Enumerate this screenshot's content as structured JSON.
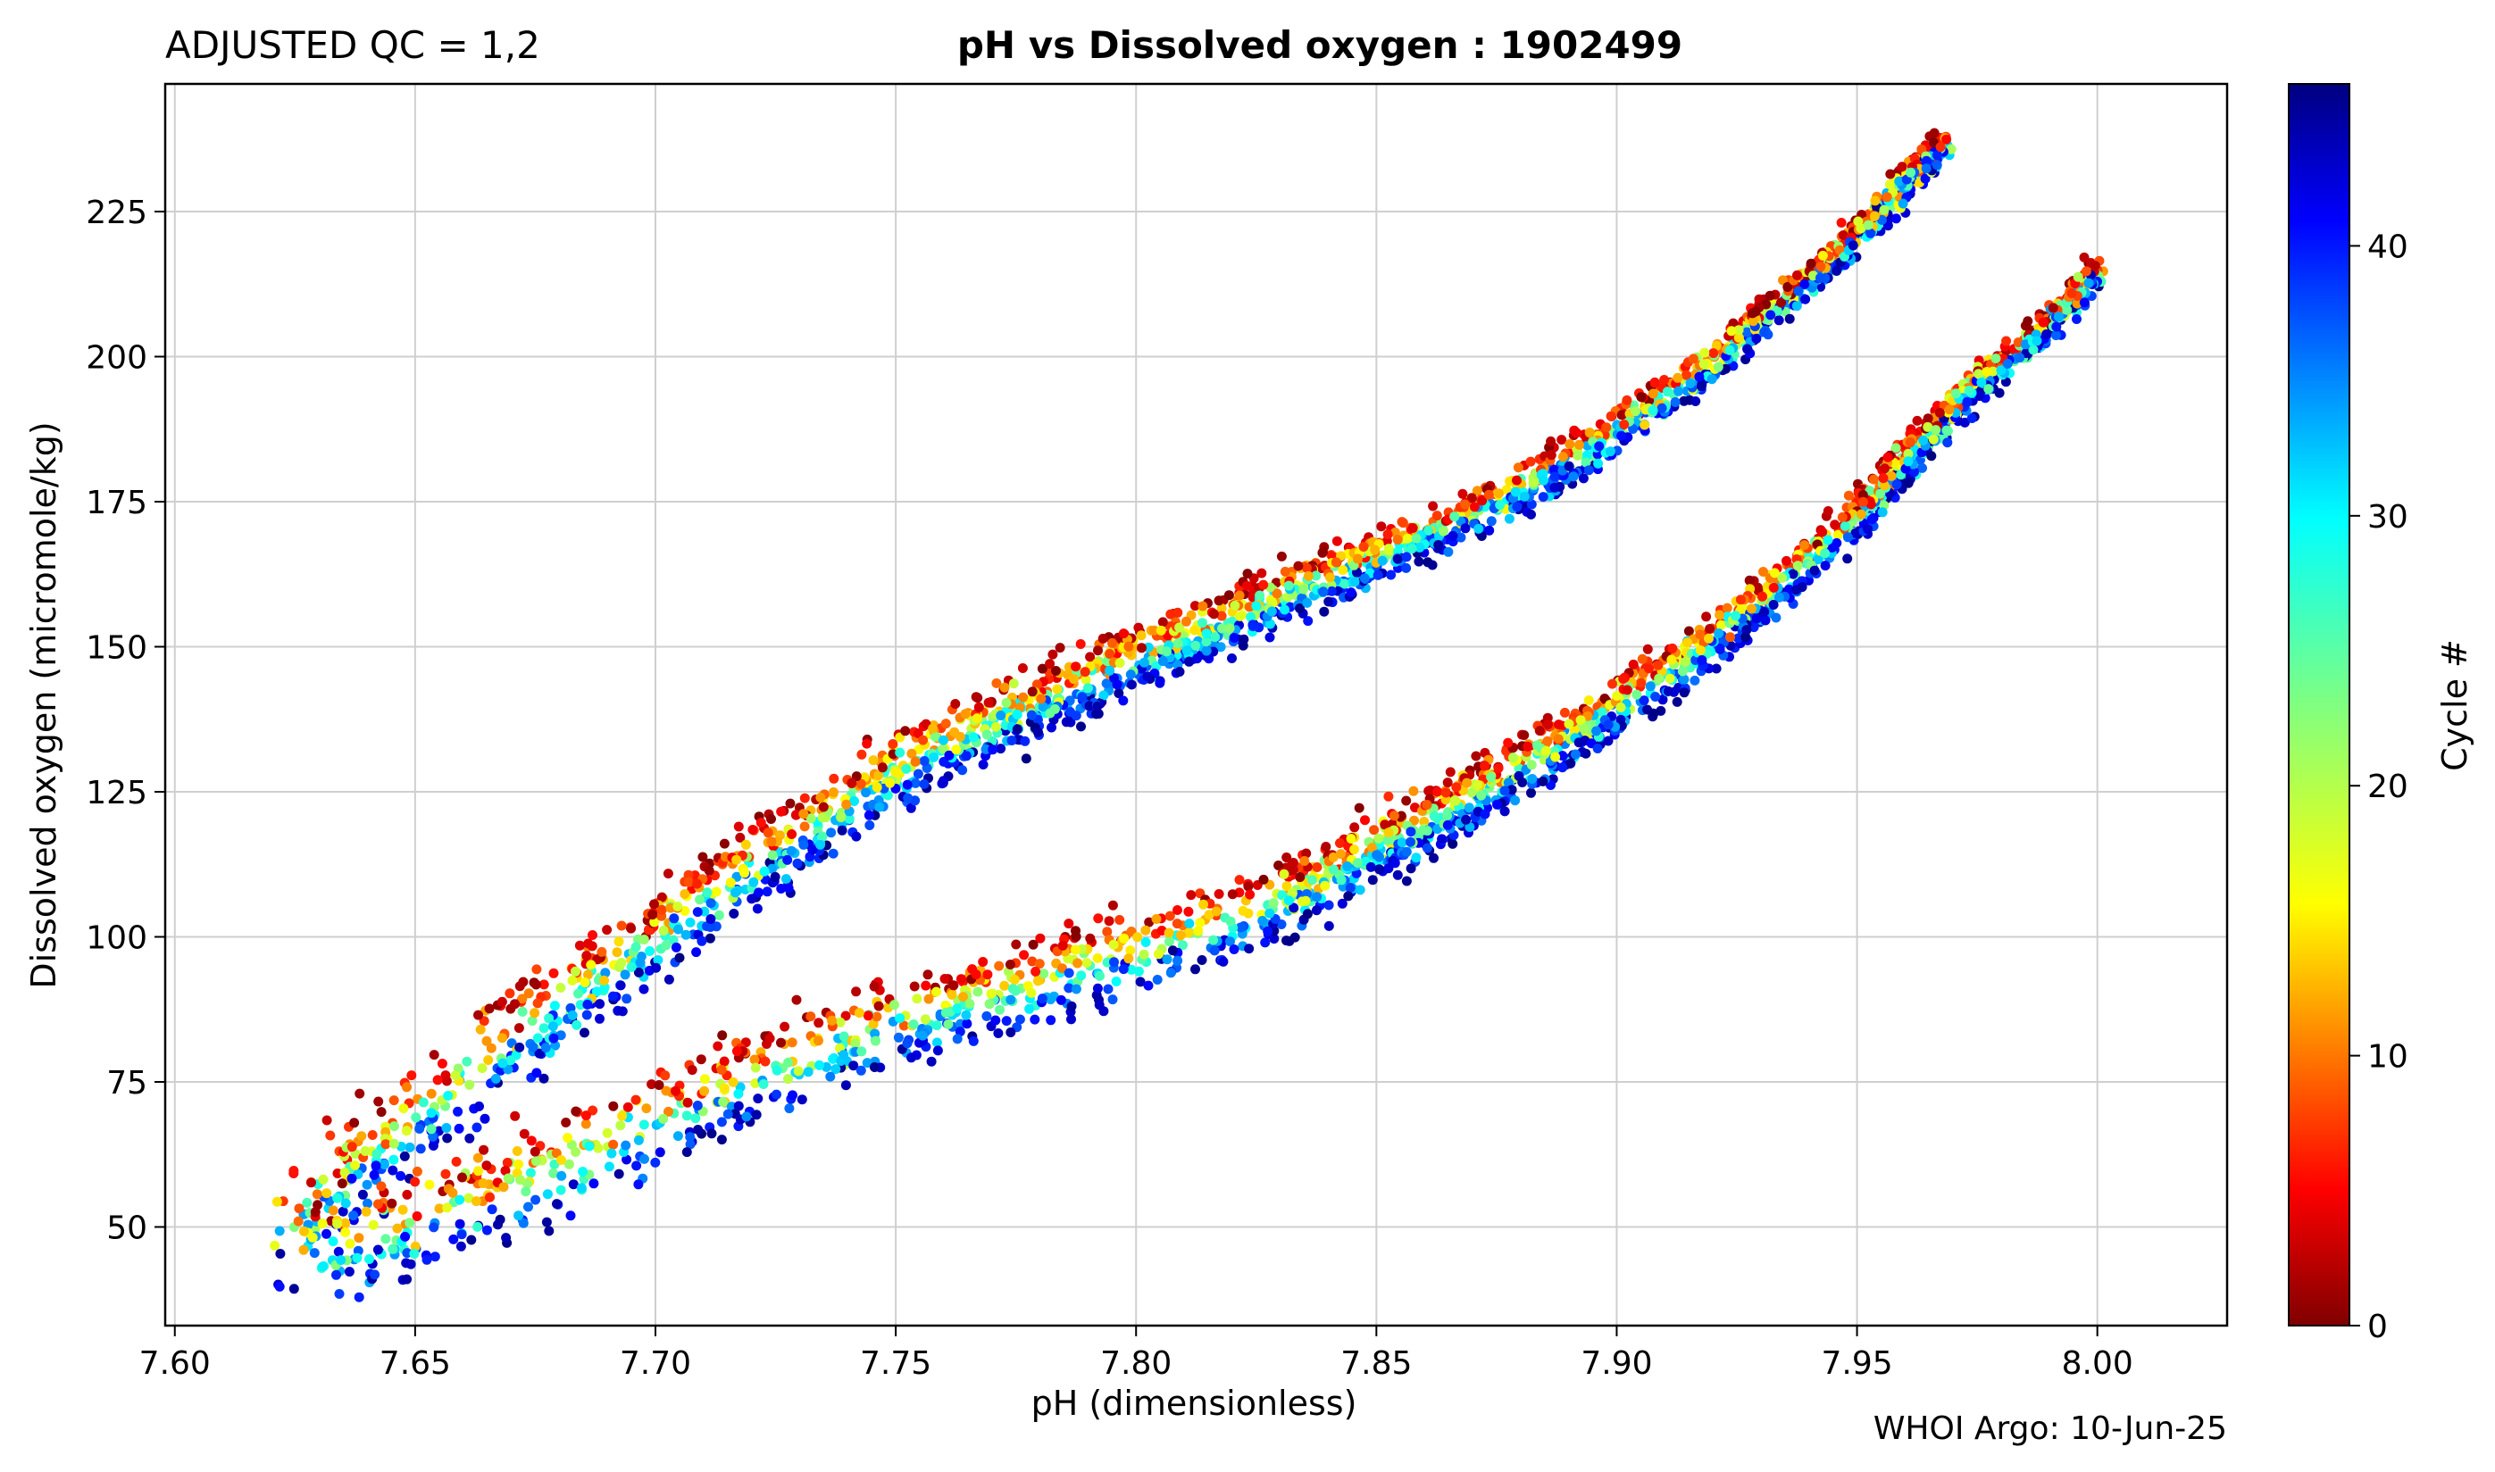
{
  "chart_data": {
    "type": "scatter",
    "title_left": "ADJUSTED QC = 1,2",
    "title": "pH vs Dissolved oxygen : 1902499",
    "xlabel": "pH  (dimensionless)",
    "ylabel": "Dissolved oxygen  (micromole/kg)",
    "footer": "WHOI Argo: 10-Jun-25",
    "xlim": [
      7.598,
      8.027
    ],
    "ylim": [
      33,
      247
    ],
    "x_ticks": [
      7.6,
      7.65,
      7.7,
      7.75,
      7.8,
      7.85,
      7.9,
      7.95,
      8.0
    ],
    "x_tick_labels": [
      "7.60",
      "7.65",
      "7.70",
      "7.75",
      "7.80",
      "7.85",
      "7.90",
      "7.95",
      "8.00"
    ],
    "y_ticks": [
      50,
      75,
      100,
      125,
      150,
      175,
      200,
      225
    ],
    "y_tick_labels": [
      "50",
      "75",
      "100",
      "125",
      "150",
      "175",
      "200",
      "225"
    ],
    "grid": true,
    "colormap": "jet",
    "colorbar": {
      "label": "Cycle #",
      "range": [
        0,
        46
      ],
      "ticks": [
        0,
        10,
        20,
        30,
        40
      ],
      "tick_labels": [
        "0",
        "10",
        "20",
        "30",
        "40"
      ]
    },
    "series": [
      {
        "group": "upper-branch",
        "x": [
          7.62,
          7.64,
          7.66,
          7.68,
          7.7,
          7.72,
          7.74,
          7.76,
          7.78,
          7.8,
          7.82,
          7.84,
          7.86,
          7.88,
          7.9,
          7.92,
          7.94,
          7.955,
          7.968
        ],
        "y": [
          48,
          62,
          75,
          88,
          100,
          112,
          123,
          133,
          141,
          148,
          155,
          162,
          169,
          177,
          187,
          199,
          213,
          225,
          237
        ]
      },
      {
        "group": "lower-branch",
        "x": [
          7.625,
          7.65,
          7.68,
          7.71,
          7.74,
          7.77,
          7.8,
          7.83,
          7.85,
          7.87,
          7.89,
          7.91,
          7.93,
          7.95,
          7.96,
          7.975,
          7.99,
          8.0
        ],
        "y": [
          45,
          50,
          60,
          72,
          82,
          90,
          97,
          106,
          115,
          124,
          134,
          145,
          158,
          172,
          182,
          195,
          205,
          215
        ]
      }
    ]
  }
}
